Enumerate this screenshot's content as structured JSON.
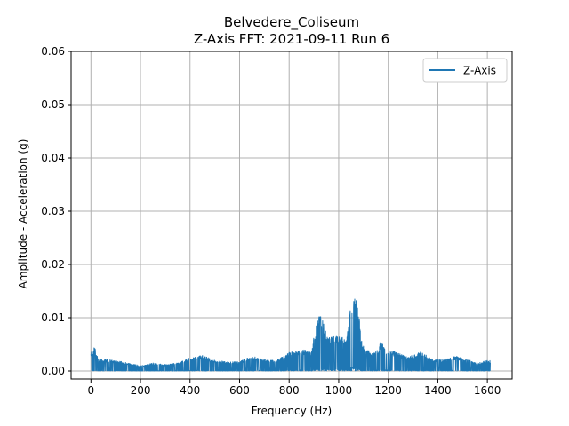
{
  "chart_data": {
    "type": "line",
    "title": "Belvedere_Coliseum",
    "subtitle": "Z-Axis FFT: 2021-09-11 Run 6",
    "xlabel": "Frequency (Hz)",
    "ylabel": "Amplitude - Acceleration (g)",
    "xlim": [
      -80,
      1700
    ],
    "ylim": [
      -0.0015,
      0.06
    ],
    "x_ticks": [
      0,
      200,
      400,
      600,
      800,
      1000,
      1200,
      1400,
      1600
    ],
    "y_ticks": [
      0.0,
      0.01,
      0.02,
      0.03,
      0.04,
      0.05,
      0.06
    ],
    "x_tick_labels": [
      "0",
      "200",
      "400",
      "600",
      "800",
      "1000",
      "1200",
      "1400",
      "1600"
    ],
    "y_tick_labels": [
      "0.00",
      "0.01",
      "0.02",
      "0.03",
      "0.04",
      "0.05",
      "0.06"
    ],
    "grid": true,
    "legend_position": "top-right",
    "series": [
      {
        "name": "Z-Axis",
        "color": "#1f77b4",
        "x_range": [
          0,
          1612
        ],
        "envelope": [
          [
            0,
            0.0035
          ],
          [
            15,
            0.0045
          ],
          [
            30,
            0.0022
          ],
          [
            60,
            0.0022
          ],
          [
            100,
            0.002
          ],
          [
            150,
            0.0015
          ],
          [
            200,
            0.001
          ],
          [
            250,
            0.0015
          ],
          [
            300,
            0.0012
          ],
          [
            350,
            0.0015
          ],
          [
            400,
            0.0025
          ],
          [
            450,
            0.003
          ],
          [
            500,
            0.002
          ],
          [
            550,
            0.0018
          ],
          [
            600,
            0.0018
          ],
          [
            650,
            0.0028
          ],
          [
            700,
            0.0022
          ],
          [
            750,
            0.002
          ],
          [
            800,
            0.0035
          ],
          [
            860,
            0.004
          ],
          [
            890,
            0.0035
          ],
          [
            905,
            0.008
          ],
          [
            920,
            0.0105
          ],
          [
            935,
            0.01
          ],
          [
            950,
            0.007
          ],
          [
            970,
            0.0065
          ],
          [
            990,
            0.0068
          ],
          [
            1010,
            0.007
          ],
          [
            1030,
            0.0055
          ],
          [
            1045,
            0.0115
          ],
          [
            1060,
            0.014
          ],
          [
            1075,
            0.0138
          ],
          [
            1085,
            0.009
          ],
          [
            1095,
            0.005
          ],
          [
            1110,
            0.004
          ],
          [
            1140,
            0.0035
          ],
          [
            1160,
            0.004
          ],
          [
            1170,
            0.0058
          ],
          [
            1190,
            0.004
          ],
          [
            1240,
            0.0035
          ],
          [
            1280,
            0.0025
          ],
          [
            1330,
            0.0038
          ],
          [
            1380,
            0.0022
          ],
          [
            1430,
            0.0022
          ],
          [
            1470,
            0.0028
          ],
          [
            1530,
            0.002
          ],
          [
            1560,
            0.0015
          ],
          [
            1600,
            0.002
          ],
          [
            1612,
            0.002
          ]
        ]
      }
    ]
  }
}
